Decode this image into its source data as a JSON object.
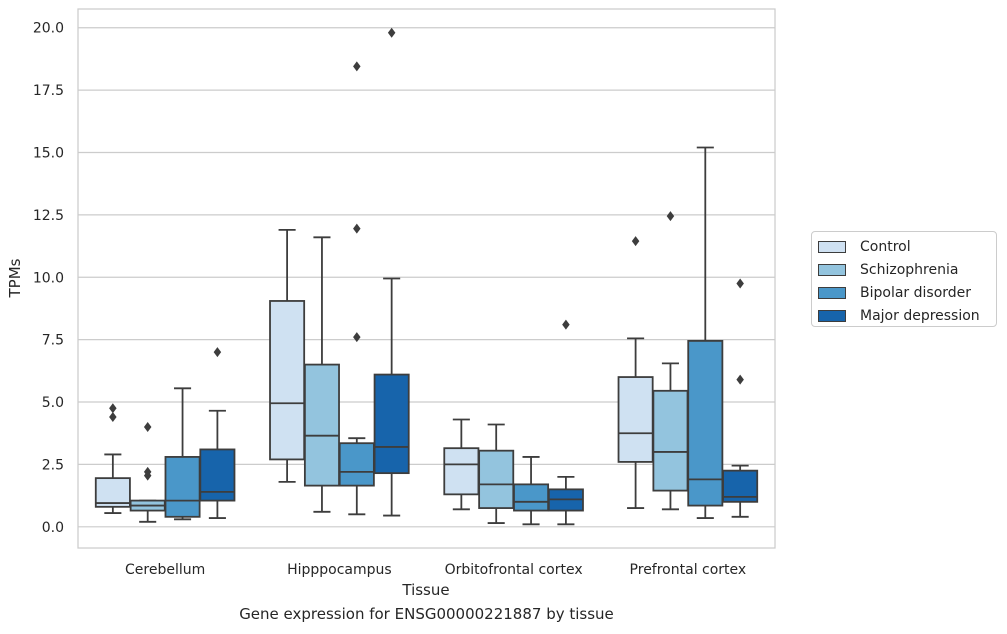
{
  "caption": "Gene expression for ENSG00000221887 by tissue",
  "chart_data": {
    "type": "box",
    "xlabel": "Tissue",
    "ylabel": "TPMs",
    "categories": [
      "Cerebellum",
      "Hipppocampus",
      "Orbitofrontal cortex",
      "Prefrontal cortex"
    ],
    "ylim": [
      -0.85,
      20.75
    ],
    "yticks": [
      0.0,
      2.5,
      5.0,
      7.5,
      10.0,
      12.5,
      15.0,
      17.5,
      20.0
    ],
    "ytick_labels": [
      "0.0",
      "2.5",
      "5.0",
      "7.5",
      "10.0",
      "12.5",
      "15.0",
      "17.5",
      "20.0"
    ],
    "grid": "horizontal",
    "legend_position": "right",
    "series": [
      {
        "name": "Control",
        "color": "#cfe1f2",
        "boxes": [
          {
            "whisker_low": 0.55,
            "q1": 0.8,
            "median": 0.95,
            "q3": 1.95,
            "whisker_high": 2.9,
            "outliers": [
              4.4,
              4.75
            ]
          },
          {
            "whisker_low": 1.8,
            "q1": 2.7,
            "median": 4.95,
            "q3": 9.05,
            "whisker_high": 11.9,
            "outliers": []
          },
          {
            "whisker_low": 0.7,
            "q1": 1.3,
            "median": 2.5,
            "q3": 3.15,
            "whisker_high": 4.3,
            "outliers": []
          },
          {
            "whisker_low": 0.75,
            "q1": 2.6,
            "median": 3.75,
            "q3": 6.0,
            "whisker_high": 7.55,
            "outliers": [
              11.45
            ]
          }
        ]
      },
      {
        "name": "Schizophrenia",
        "color": "#93c4de",
        "boxes": [
          {
            "whisker_low": 0.2,
            "q1": 0.65,
            "median": 0.85,
            "q3": 1.05,
            "whisker_high": 1.05,
            "outliers": [
              2.05,
              2.2,
              4.0
            ]
          },
          {
            "whisker_low": 0.6,
            "q1": 1.65,
            "median": 3.65,
            "q3": 6.5,
            "whisker_high": 11.6,
            "outliers": []
          },
          {
            "whisker_low": 0.15,
            "q1": 0.75,
            "median": 1.7,
            "q3": 3.05,
            "whisker_high": 4.1,
            "outliers": []
          },
          {
            "whisker_low": 0.7,
            "q1": 1.45,
            "median": 3.0,
            "q3": 5.45,
            "whisker_high": 6.55,
            "outliers": [
              12.45
            ]
          }
        ]
      },
      {
        "name": "Bipolar disorder",
        "color": "#4a97c9",
        "boxes": [
          {
            "whisker_low": 0.3,
            "q1": 0.4,
            "median": 1.05,
            "q3": 2.8,
            "whisker_high": 5.55,
            "outliers": []
          },
          {
            "whisker_low": 0.5,
            "q1": 1.65,
            "median": 2.2,
            "q3": 3.35,
            "whisker_high": 3.55,
            "outliers": [
              7.6,
              11.95,
              18.45
            ]
          },
          {
            "whisker_low": 0.1,
            "q1": 0.65,
            "median": 1.0,
            "q3": 1.7,
            "whisker_high": 2.8,
            "outliers": []
          },
          {
            "whisker_low": 0.35,
            "q1": 0.85,
            "median": 1.9,
            "q3": 7.45,
            "whisker_high": 15.2,
            "outliers": []
          }
        ]
      },
      {
        "name": "Major depression",
        "color": "#1764ab",
        "boxes": [
          {
            "whisker_low": 0.35,
            "q1": 1.05,
            "median": 1.4,
            "q3": 3.1,
            "whisker_high": 4.65,
            "outliers": [
              7.0
            ]
          },
          {
            "whisker_low": 0.45,
            "q1": 2.15,
            "median": 3.2,
            "q3": 6.1,
            "whisker_high": 9.95,
            "outliers": [
              19.8
            ]
          },
          {
            "whisker_low": 0.1,
            "q1": 0.65,
            "median": 1.1,
            "q3": 1.5,
            "whisker_high": 2.0,
            "outliers": [
              8.1
            ]
          },
          {
            "whisker_low": 0.4,
            "q1": 1.0,
            "median": 1.2,
            "q3": 2.25,
            "whisker_high": 2.45,
            "outliers": [
              5.9,
              9.75
            ]
          }
        ]
      }
    ]
  }
}
